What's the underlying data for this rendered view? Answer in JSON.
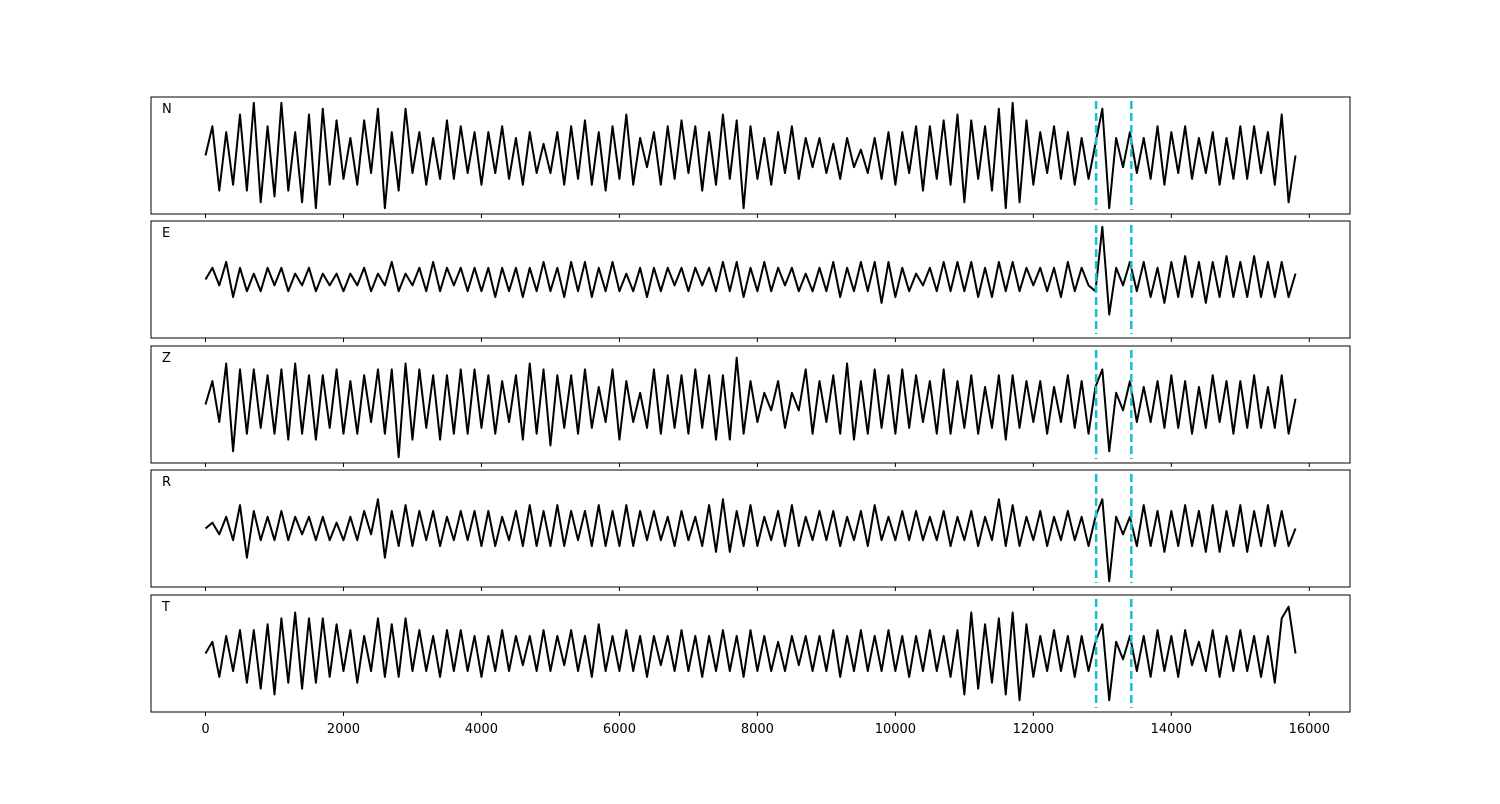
{
  "chart_data": {
    "type": "line",
    "line_color": "#000000",
    "vline_color": "#17becf",
    "xlim": [
      -790,
      16590
    ],
    "xticks": [
      0,
      2000,
      4000,
      6000,
      8000,
      10000,
      12000,
      14000,
      16000
    ],
    "vlines": [
      12910,
      13420
    ],
    "x": [
      0,
      100,
      200,
      300,
      400,
      500,
      600,
      700,
      800,
      900,
      1000,
      1100,
      1200,
      1300,
      1400,
      1500,
      1600,
      1700,
      1800,
      1900,
      2000,
      2100,
      2200,
      2300,
      2400,
      2500,
      2600,
      2700,
      2800,
      2900,
      3000,
      3100,
      3200,
      3300,
      3400,
      3500,
      3600,
      3700,
      3800,
      3900,
      4000,
      4100,
      4200,
      4300,
      4400,
      4500,
      4600,
      4700,
      4800,
      4900,
      5000,
      5100,
      5200,
      5300,
      5400,
      5500,
      5600,
      5700,
      5800,
      5900,
      6000,
      6100,
      6200,
      6300,
      6400,
      6500,
      6600,
      6700,
      6800,
      6900,
      7000,
      7100,
      7200,
      7300,
      7400,
      7500,
      7600,
      7700,
      7800,
      7900,
      8000,
      8100,
      8200,
      8300,
      8400,
      8500,
      8600,
      8700,
      8800,
      8900,
      9000,
      9100,
      9200,
      9300,
      9400,
      9500,
      9600,
      9700,
      9800,
      9900,
      10000,
      10100,
      10200,
      10300,
      10400,
      10500,
      10600,
      10700,
      10800,
      10900,
      11000,
      11100,
      11200,
      11300,
      11400,
      11500,
      11600,
      11700,
      11800,
      11900,
      12000,
      12100,
      12200,
      12300,
      12400,
      12500,
      12600,
      12700,
      12800,
      12900,
      13000,
      13100,
      13200,
      13300,
      13400,
      13500,
      13600,
      13700,
      13800,
      13900,
      14000,
      14100,
      14200,
      14300,
      14400,
      14500,
      14600,
      14700,
      14800,
      14900,
      15000,
      15100,
      15200,
      15300,
      15400,
      15500,
      15600,
      15700,
      15800
    ],
    "panels": [
      {
        "label": "N",
        "ylim": [
          -1,
          1
        ],
        "values": [
          0.0,
          0.5,
          -0.6,
          0.4,
          -0.5,
          0.7,
          -0.6,
          0.9,
          -0.8,
          0.5,
          -0.7,
          0.9,
          -0.6,
          0.4,
          -0.8,
          0.7,
          -0.9,
          0.8,
          -0.5,
          0.6,
          -0.4,
          0.3,
          -0.5,
          0.6,
          -0.3,
          0.8,
          -0.9,
          0.4,
          -0.6,
          0.8,
          -0.3,
          0.4,
          -0.5,
          0.3,
          -0.4,
          0.6,
          -0.4,
          0.5,
          -0.3,
          0.4,
          -0.5,
          0.4,
          -0.3,
          0.5,
          -0.4,
          0.3,
          -0.5,
          0.4,
          -0.3,
          0.2,
          -0.3,
          0.4,
          -0.5,
          0.5,
          -0.4,
          0.6,
          -0.5,
          0.4,
          -0.6,
          0.5,
          -0.4,
          0.7,
          -0.5,
          0.3,
          -0.2,
          0.4,
          -0.5,
          0.5,
          -0.4,
          0.6,
          -0.3,
          0.5,
          -0.6,
          0.4,
          -0.5,
          0.7,
          -0.4,
          0.6,
          -0.9,
          0.5,
          -0.4,
          0.3,
          -0.5,
          0.4,
          -0.3,
          0.5,
          -0.4,
          0.3,
          -0.2,
          0.3,
          -0.3,
          0.2,
          -0.4,
          0.3,
          -0.2,
          0.1,
          -0.3,
          0.3,
          -0.4,
          0.4,
          -0.5,
          0.4,
          -0.3,
          0.5,
          -0.6,
          0.5,
          -0.4,
          0.6,
          -0.5,
          0.7,
          -0.8,
          0.6,
          -0.4,
          0.5,
          -0.6,
          0.8,
          -0.9,
          0.9,
          -0.8,
          0.6,
          -0.5,
          0.4,
          -0.3,
          0.5,
          -0.4,
          0.4,
          -0.5,
          0.3,
          -0.4,
          0.2,
          0.8,
          -0.9,
          0.3,
          -0.2,
          0.4,
          -0.3,
          0.3,
          -0.4,
          0.5,
          -0.5,
          0.4,
          -0.3,
          0.5,
          -0.4,
          0.3,
          -0.3,
          0.4,
          -0.5,
          0.3,
          -0.4,
          0.5,
          -0.4,
          0.5,
          -0.3,
          0.4,
          -0.5,
          0.7,
          -0.8,
          0.0
        ]
      },
      {
        "label": "E",
        "ylim": [
          -1,
          1
        ],
        "values": [
          0.0,
          0.2,
          -0.1,
          0.3,
          -0.3,
          0.2,
          -0.2,
          0.1,
          -0.2,
          0.2,
          -0.1,
          0.2,
          -0.2,
          0.1,
          -0.1,
          0.2,
          -0.2,
          0.1,
          -0.1,
          0.1,
          -0.2,
          0.1,
          -0.1,
          0.2,
          -0.2,
          0.1,
          -0.1,
          0.3,
          -0.2,
          0.1,
          -0.1,
          0.2,
          -0.2,
          0.3,
          -0.2,
          0.2,
          -0.1,
          0.2,
          -0.2,
          0.2,
          -0.2,
          0.2,
          -0.3,
          0.2,
          -0.2,
          0.2,
          -0.3,
          0.2,
          -0.2,
          0.3,
          -0.2,
          0.2,
          -0.3,
          0.3,
          -0.2,
          0.3,
          -0.3,
          0.2,
          -0.2,
          0.3,
          -0.2,
          0.1,
          -0.2,
          0.2,
          -0.3,
          0.2,
          -0.2,
          0.2,
          -0.1,
          0.2,
          -0.2,
          0.2,
          -0.1,
          0.2,
          -0.2,
          0.3,
          -0.2,
          0.3,
          -0.3,
          0.2,
          -0.2,
          0.3,
          -0.2,
          0.2,
          -0.1,
          0.2,
          -0.2,
          0.1,
          -0.2,
          0.2,
          -0.2,
          0.3,
          -0.3,
          0.2,
          -0.2,
          0.3,
          -0.2,
          0.3,
          -0.4,
          0.3,
          -0.3,
          0.2,
          -0.2,
          0.1,
          -0.1,
          0.2,
          -0.2,
          0.3,
          -0.2,
          0.3,
          -0.2,
          0.3,
          -0.3,
          0.2,
          -0.3,
          0.3,
          -0.2,
          0.3,
          -0.2,
          0.2,
          -0.1,
          0.2,
          -0.2,
          0.2,
          -0.3,
          0.3,
          -0.2,
          0.2,
          -0.1,
          -0.2,
          0.9,
          -0.6,
          0.2,
          -0.1,
          0.3,
          -0.2,
          0.3,
          -0.3,
          0.2,
          -0.4,
          0.3,
          -0.3,
          0.4,
          -0.3,
          0.3,
          -0.4,
          0.3,
          -0.3,
          0.4,
          -0.3,
          0.3,
          -0.3,
          0.4,
          -0.3,
          0.3,
          -0.3,
          0.3,
          -0.3,
          0.1
        ]
      },
      {
        "label": "Z",
        "ylim": [
          -1,
          1
        ],
        "values": [
          0.0,
          0.4,
          -0.3,
          0.7,
          -0.8,
          0.6,
          -0.5,
          0.6,
          -0.4,
          0.5,
          -0.5,
          0.6,
          -0.6,
          0.7,
          -0.5,
          0.5,
          -0.6,
          0.5,
          -0.4,
          0.6,
          -0.5,
          0.4,
          -0.5,
          0.5,
          -0.3,
          0.6,
          -0.5,
          0.6,
          -0.9,
          0.7,
          -0.6,
          0.6,
          -0.4,
          0.5,
          -0.6,
          0.5,
          -0.5,
          0.6,
          -0.5,
          0.6,
          -0.4,
          0.5,
          -0.5,
          0.4,
          -0.3,
          0.5,
          -0.6,
          0.7,
          -0.5,
          0.6,
          -0.7,
          0.5,
          -0.4,
          0.5,
          -0.5,
          0.6,
          -0.4,
          0.3,
          -0.3,
          0.6,
          -0.6,
          0.4,
          -0.3,
          0.2,
          -0.4,
          0.6,
          -0.5,
          0.5,
          -0.4,
          0.5,
          -0.5,
          0.6,
          -0.4,
          0.5,
          -0.6,
          0.5,
          -0.6,
          0.8,
          -0.5,
          0.4,
          -0.3,
          0.2,
          -0.1,
          0.4,
          -0.4,
          0.2,
          -0.1,
          0.6,
          -0.5,
          0.4,
          -0.3,
          0.5,
          -0.5,
          0.7,
          -0.6,
          0.4,
          -0.5,
          0.6,
          -0.4,
          0.5,
          -0.5,
          0.6,
          -0.4,
          0.5,
          -0.3,
          0.4,
          -0.5,
          0.6,
          -0.5,
          0.4,
          -0.4,
          0.5,
          -0.5,
          0.3,
          -0.4,
          0.5,
          -0.6,
          0.5,
          -0.4,
          0.4,
          -0.3,
          0.4,
          -0.5,
          0.3,
          -0.3,
          0.5,
          -0.4,
          0.4,
          -0.5,
          0.3,
          0.6,
          -0.8,
          0.2,
          -0.1,
          0.4,
          -0.3,
          0.3,
          -0.3,
          0.4,
          -0.4,
          0.5,
          -0.4,
          0.4,
          -0.5,
          0.3,
          -0.4,
          0.5,
          -0.3,
          0.4,
          -0.5,
          0.4,
          -0.4,
          0.5,
          -0.4,
          0.3,
          -0.4,
          0.5,
          -0.5,
          0.1
        ]
      },
      {
        "label": "R",
        "ylim": [
          -1,
          1
        ],
        "values": [
          0.0,
          0.1,
          -0.1,
          0.2,
          -0.2,
          0.4,
          -0.5,
          0.3,
          -0.2,
          0.2,
          -0.2,
          0.3,
          -0.2,
          0.2,
          -0.1,
          0.2,
          -0.2,
          0.2,
          -0.2,
          0.1,
          -0.2,
          0.2,
          -0.2,
          0.3,
          -0.1,
          0.5,
          -0.5,
          0.3,
          -0.3,
          0.4,
          -0.3,
          0.3,
          -0.2,
          0.3,
          -0.3,
          0.2,
          -0.2,
          0.3,
          -0.2,
          0.3,
          -0.3,
          0.3,
          -0.3,
          0.2,
          -0.2,
          0.3,
          -0.3,
          0.4,
          -0.3,
          0.3,
          -0.3,
          0.4,
          -0.3,
          0.3,
          -0.2,
          0.3,
          -0.3,
          0.4,
          -0.3,
          0.3,
          -0.3,
          0.4,
          -0.3,
          0.3,
          -0.2,
          0.3,
          -0.2,
          0.2,
          -0.3,
          0.3,
          -0.2,
          0.2,
          -0.3,
          0.4,
          -0.4,
          0.5,
          -0.4,
          0.3,
          -0.3,
          0.4,
          -0.3,
          0.2,
          -0.2,
          0.3,
          -0.3,
          0.4,
          -0.3,
          0.2,
          -0.2,
          0.3,
          -0.2,
          0.3,
          -0.3,
          0.2,
          -0.2,
          0.3,
          -0.3,
          0.4,
          -0.2,
          0.2,
          -0.2,
          0.3,
          -0.2,
          0.3,
          -0.2,
          0.2,
          -0.2,
          0.3,
          -0.3,
          0.2,
          -0.2,
          0.3,
          -0.3,
          0.2,
          -0.2,
          0.5,
          -0.3,
          0.4,
          -0.3,
          0.2,
          -0.2,
          0.3,
          -0.3,
          0.2,
          -0.2,
          0.3,
          -0.2,
          0.2,
          -0.3,
          0.2,
          0.5,
          -0.9,
          0.2,
          -0.1,
          0.2,
          -0.3,
          0.4,
          -0.3,
          0.3,
          -0.4,
          0.3,
          -0.3,
          0.4,
          -0.3,
          0.3,
          -0.4,
          0.4,
          -0.4,
          0.3,
          -0.3,
          0.4,
          -0.4,
          0.3,
          -0.3,
          0.4,
          -0.3,
          0.3,
          -0.3,
          0.0
        ]
      },
      {
        "label": "T",
        "ylim": [
          -1,
          1
        ],
        "values": [
          0.0,
          0.2,
          -0.4,
          0.3,
          -0.3,
          0.4,
          -0.5,
          0.4,
          -0.6,
          0.5,
          -0.7,
          0.6,
          -0.5,
          0.7,
          -0.6,
          0.6,
          -0.5,
          0.6,
          -0.4,
          0.5,
          -0.3,
          0.4,
          -0.5,
          0.3,
          -0.3,
          0.6,
          -0.4,
          0.5,
          -0.4,
          0.6,
          -0.3,
          0.4,
          -0.3,
          0.3,
          -0.4,
          0.4,
          -0.3,
          0.4,
          -0.3,
          0.3,
          -0.4,
          0.3,
          -0.3,
          0.4,
          -0.3,
          0.3,
          -0.2,
          0.3,
          -0.3,
          0.4,
          -0.3,
          0.3,
          -0.2,
          0.4,
          -0.3,
          0.3,
          -0.4,
          0.5,
          -0.3,
          0.3,
          -0.3,
          0.4,
          -0.3,
          0.3,
          -0.4,
          0.3,
          -0.2,
          0.3,
          -0.3,
          0.4,
          -0.3,
          0.3,
          -0.4,
          0.3,
          -0.3,
          0.4,
          -0.3,
          0.3,
          -0.4,
          0.4,
          -0.3,
          0.3,
          -0.3,
          0.2,
          -0.3,
          0.3,
          -0.2,
          0.3,
          -0.3,
          0.3,
          -0.3,
          0.4,
          -0.4,
          0.3,
          -0.3,
          0.4,
          -0.3,
          0.3,
          -0.3,
          0.4,
          -0.3,
          0.3,
          -0.4,
          0.3,
          -0.3,
          0.4,
          -0.3,
          0.3,
          -0.4,
          0.4,
          -0.7,
          0.7,
          -0.6,
          0.5,
          -0.5,
          0.6,
          -0.7,
          0.7,
          -0.8,
          0.5,
          -0.4,
          0.3,
          -0.3,
          0.4,
          -0.3,
          0.3,
          -0.4,
          0.3,
          -0.3,
          0.2,
          0.5,
          -0.8,
          0.2,
          -0.1,
          0.3,
          -0.3,
          0.3,
          -0.4,
          0.4,
          -0.3,
          0.3,
          -0.4,
          0.4,
          -0.2,
          0.2,
          -0.3,
          0.4,
          -0.4,
          0.3,
          -0.3,
          0.4,
          -0.3,
          0.3,
          -0.4,
          0.3,
          -0.5,
          0.6,
          0.8,
          0.0
        ]
      }
    ]
  }
}
